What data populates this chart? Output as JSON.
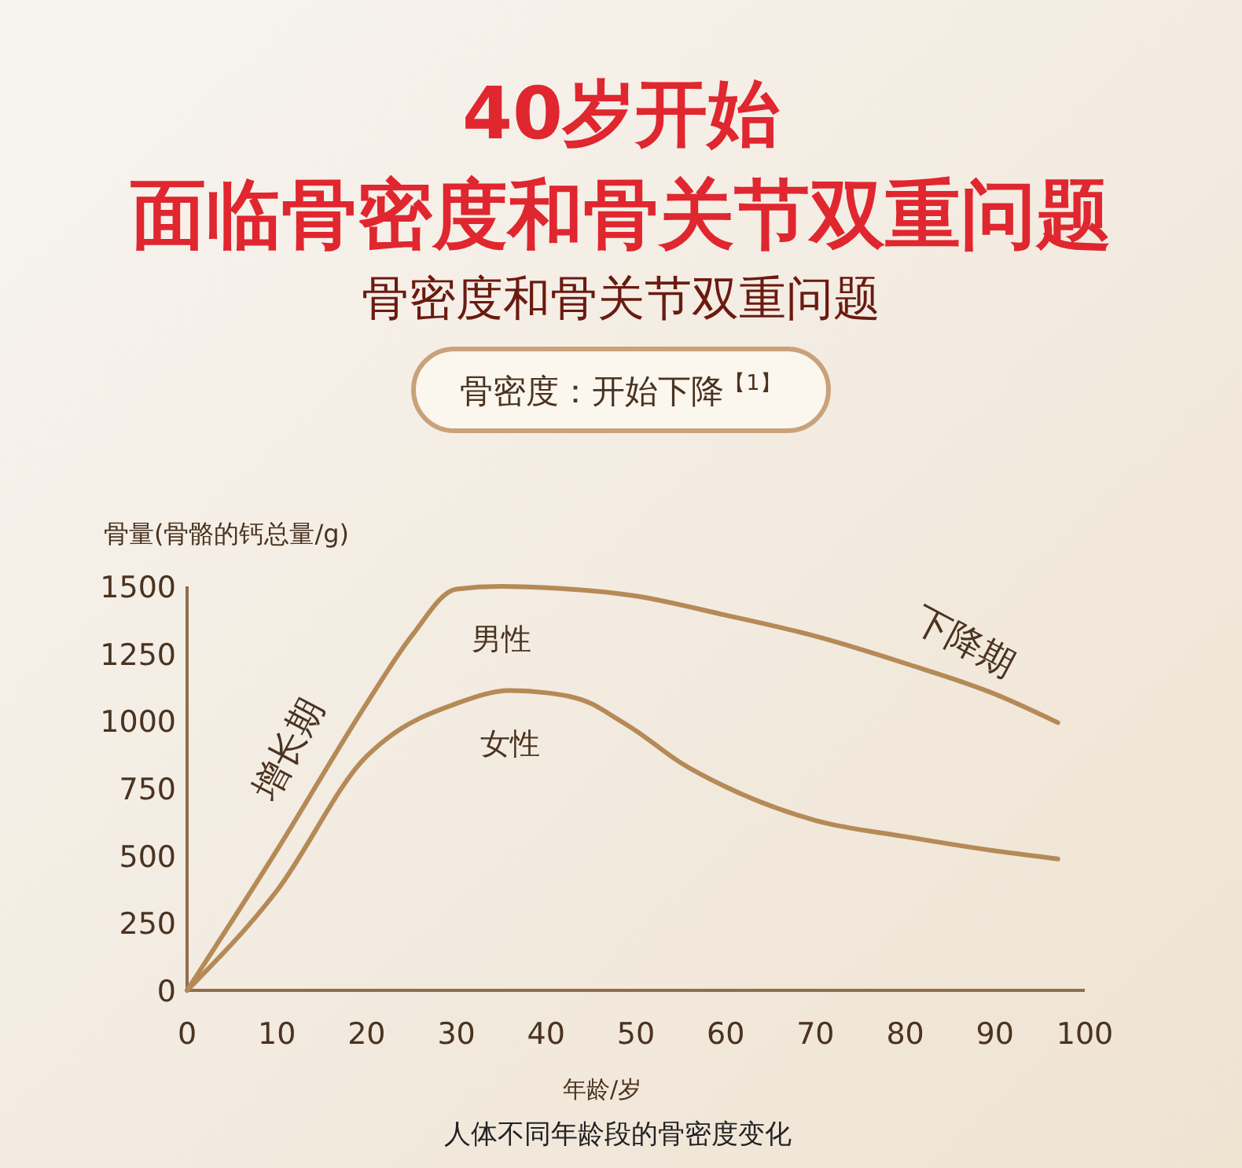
{
  "chart_data": {
    "type": "line",
    "title": "40岁开始",
    "subtitle": "面临骨密度和骨关节双重问题",
    "ylabel": "骨量(骨骼的钙总量/g)",
    "xlabel": "年龄/岁",
    "annotations": [
      "骨密度和骨关节双重问题",
      "骨密度：开始下降$^{【1】}$",
      "增长期",
      "下降期",
      "人体不同年龄段的骨密度变化"
    ],
    "xlim": [
      0,
      100
    ],
    "ylim": [
      0,
      1500
    ],
    "xticks": [
      0,
      10,
      20,
      30,
      40,
      50,
      60,
      70,
      80,
      90,
      100
    ],
    "yticks": [
      0,
      250,
      500,
      750,
      1000,
      1250,
      1500
    ],
    "grid": false,
    "marker": "none",
    "line_style": "solid",
    "series": [
      {
        "name": "男性",
        "color": "#b58a57",
        "x": [
          0,
          10,
          20,
          25,
          30,
          35,
          40,
          50,
          60,
          70,
          80,
          90,
          97
        ],
        "values": [
          0,
          520,
          1065,
          1315,
          1490,
          1500,
          1495,
          1464,
          1393,
          1315,
          1214,
          1100,
          994
        ]
      },
      {
        "name": "女性",
        "color": "#b58a57",
        "x": [
          0,
          10,
          20,
          22,
          30,
          36,
          40,
          45,
          48,
          50,
          55,
          60,
          70,
          80,
          90,
          97
        ],
        "values": [
          0,
          370,
          869,
          928,
          1065,
          1113,
          1105,
          1065,
          1006,
          964,
          845,
          756,
          631,
          571,
          518,
          488
        ]
      }
    ]
  }
}
